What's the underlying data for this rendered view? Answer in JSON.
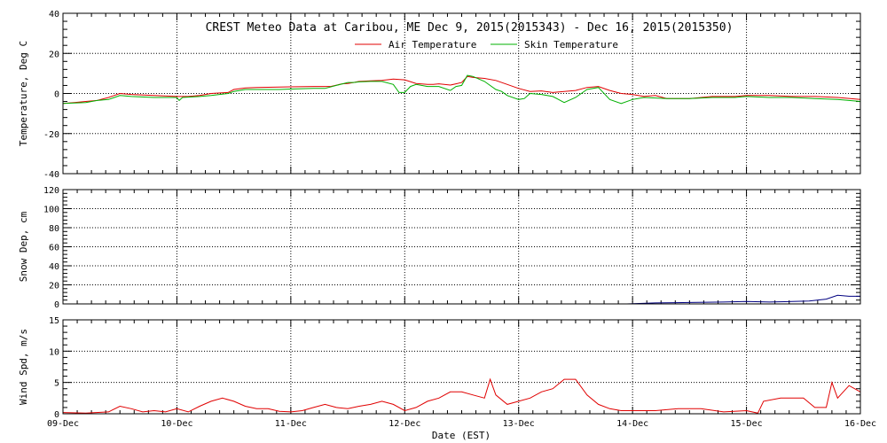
{
  "chart_data": {
    "title": "CREST Meteo Data at Caribou, ME   Dec  9, 2015(2015343) - Dec 16, 2015(2015350)",
    "xlabel": "Date (EST)",
    "x_tick_labels": [
      "09-Dec",
      "10-Dec",
      "11-Dec",
      "12-Dec",
      "13-Dec",
      "14-Dec",
      "15-Dec",
      "16-Dec"
    ],
    "xlim": [
      0,
      7
    ],
    "grid": true,
    "panels": [
      {
        "type": "line",
        "ylabel": "Temperature, Deg C",
        "ylim": [
          -40,
          40
        ],
        "y_ticks": [
          -40,
          -20,
          0,
          20,
          40
        ],
        "legend": {
          "placement": "top-center"
        },
        "series": [
          {
            "name": "Air Temperature",
            "color": "#e00000",
            "x": [
              0,
              0.1,
              0.2,
              0.3,
              0.4,
              0.5,
              0.6,
              0.8,
              1.0,
              1.1,
              1.2,
              1.3,
              1.45,
              1.5,
              1.6,
              1.7,
              1.8,
              1.9,
              2.0,
              2.2,
              2.35,
              2.45,
              2.5,
              2.55,
              2.6,
              2.7,
              2.8,
              2.9,
              3.0,
              3.1,
              3.2,
              3.25,
              3.3,
              3.4,
              3.45,
              3.5,
              3.55,
              3.6,
              3.7,
              3.8,
              3.9,
              4.0,
              4.1,
              4.2,
              4.3,
              4.4,
              4.5,
              4.6,
              4.7,
              4.8,
              4.9,
              5.0,
              5.1,
              5.2,
              5.3,
              5.5,
              5.7,
              5.9,
              6.0,
              6.2,
              6.4,
              6.6,
              6.8,
              7.0
            ],
            "y": [
              -5,
              -4.5,
              -4,
              -3.5,
              -2,
              0,
              -0.5,
              -1,
              -1.5,
              -1.5,
              -1,
              0,
              0.5,
              2,
              2.8,
              3,
              3.1,
              3.2,
              3.3,
              3.5,
              3.5,
              4.8,
              5,
              5.5,
              6,
              6.3,
              6.5,
              7.2,
              6.8,
              5,
              4.5,
              4.5,
              4.8,
              4.2,
              4.8,
              5.5,
              8.5,
              8,
              7.5,
              6.5,
              4.5,
              2.5,
              1,
              1.3,
              0.5,
              1,
              1.5,
              3,
              3.5,
              1.5,
              0,
              -0.5,
              -1.5,
              -1,
              -2.5,
              -2.5,
              -1.5,
              -1.5,
              -1,
              -1,
              -1.5,
              -1.5,
              -2,
              -3
            ]
          },
          {
            "name": "Skin Temperature",
            "color": "#00b000",
            "x": [
              0,
              0.2,
              0.3,
              0.4,
              0.5,
              0.6,
              0.8,
              1.0,
              1.02,
              1.05,
              1.2,
              1.3,
              1.45,
              1.5,
              1.6,
              1.7,
              1.8,
              1.9,
              2.0,
              2.2,
              2.3,
              2.4,
              2.5,
              2.55,
              2.6,
              2.7,
              2.8,
              2.9,
              2.95,
              3.0,
              3.05,
              3.1,
              3.2,
              3.25,
              3.3,
              3.4,
              3.45,
              3.5,
              3.55,
              3.6,
              3.7,
              3.8,
              3.85,
              3.9,
              4.0,
              4.05,
              4.1,
              4.2,
              4.3,
              4.35,
              4.4,
              4.5,
              4.6,
              4.7,
              4.8,
              4.9,
              5.0,
              5.1,
              5.3,
              5.5,
              5.7,
              5.9,
              6.0,
              6.2,
              6.4,
              6.6,
              6.8,
              7.0
            ],
            "y": [
              -5,
              -4.5,
              -3.5,
              -3,
              -1,
              -1.5,
              -2,
              -2,
              -3.5,
              -2,
              -1.5,
              -1,
              0,
              1,
              2,
              2,
              2,
              2,
              2.2,
              2.5,
              2.5,
              4,
              5.5,
              5.5,
              5.8,
              6,
              6,
              4.5,
              0.5,
              0.5,
              3.5,
              4.5,
              3.5,
              3.5,
              3.5,
              1.5,
              3.5,
              4,
              9,
              8.5,
              6,
              2,
              1,
              -1,
              -3,
              -2.5,
              0,
              -0.5,
              -1.5,
              -3,
              -4.5,
              -2,
              2,
              3,
              -3,
              -5,
              -3,
              -2,
              -2.5,
              -2.5,
              -2,
              -2,
              -1.5,
              -2,
              -2,
              -2.5,
              -3,
              -4
            ]
          }
        ]
      },
      {
        "type": "line",
        "ylabel": "Snow Dep, cm",
        "ylim": [
          0,
          120
        ],
        "y_ticks": [
          0,
          20,
          40,
          60,
          80,
          100,
          120
        ],
        "series": [
          {
            "color": "#000080",
            "x": [
              4.95,
              5.2,
              5.5,
              5.8,
              6.0,
              6.2,
              6.4,
              6.55,
              6.7,
              6.8,
              6.9,
              7.0
            ],
            "y": [
              0,
              1,
              1.5,
              2,
              2.5,
              2,
              2.5,
              3,
              5,
              9,
              8,
              8
            ]
          }
        ]
      },
      {
        "type": "line",
        "ylabel": "Wind Spd, m/s",
        "ylim": [
          0,
          15
        ],
        "y_ticks": [
          0,
          5,
          10,
          15
        ],
        "series": [
          {
            "color": "#e00000",
            "x": [
              0,
              0.2,
              0.4,
              0.5,
              0.6,
              0.7,
              0.8,
              0.9,
              1.0,
              1.1,
              1.2,
              1.3,
              1.4,
              1.5,
              1.6,
              1.7,
              1.8,
              1.9,
              2.0,
              2.1,
              2.2,
              2.3,
              2.4,
              2.5,
              2.6,
              2.7,
              2.8,
              2.9,
              3.0,
              3.1,
              3.2,
              3.3,
              3.4,
              3.5,
              3.6,
              3.7,
              3.75,
              3.8,
              3.9,
              4.0,
              4.1,
              4.2,
              4.3,
              4.4,
              4.5,
              4.6,
              4.7,
              4.8,
              4.9,
              5.0,
              5.2,
              5.4,
              5.6,
              5.8,
              6.0,
              6.1,
              6.15,
              6.3,
              6.5,
              6.6,
              6.7,
              6.75,
              6.8,
              6.9,
              7.0
            ],
            "y": [
              0.2,
              0.1,
              0.3,
              1.2,
              0.8,
              0.3,
              0.5,
              0.3,
              0.8,
              0.3,
              1.2,
              2.0,
              2.5,
              2.0,
              1.2,
              0.8,
              0.8,
              0.4,
              0.3,
              0.5,
              1.0,
              1.5,
              1.0,
              0.8,
              1.2,
              1.5,
              2.0,
              1.5,
              0.5,
              1.0,
              2.0,
              2.5,
              3.5,
              3.5,
              3.0,
              2.5,
              5.5,
              3.0,
              1.5,
              2.0,
              2.5,
              3.5,
              4.0,
              5.5,
              5.5,
              3.0,
              1.5,
              0.8,
              0.5,
              0.5,
              0.5,
              0.8,
              0.8,
              0.3,
              0.5,
              0.1,
              2.0,
              2.5,
              2.5,
              1.0,
              1.0,
              5.0,
              2.5,
              4.5,
              3.5
            ]
          }
        ]
      }
    ]
  }
}
